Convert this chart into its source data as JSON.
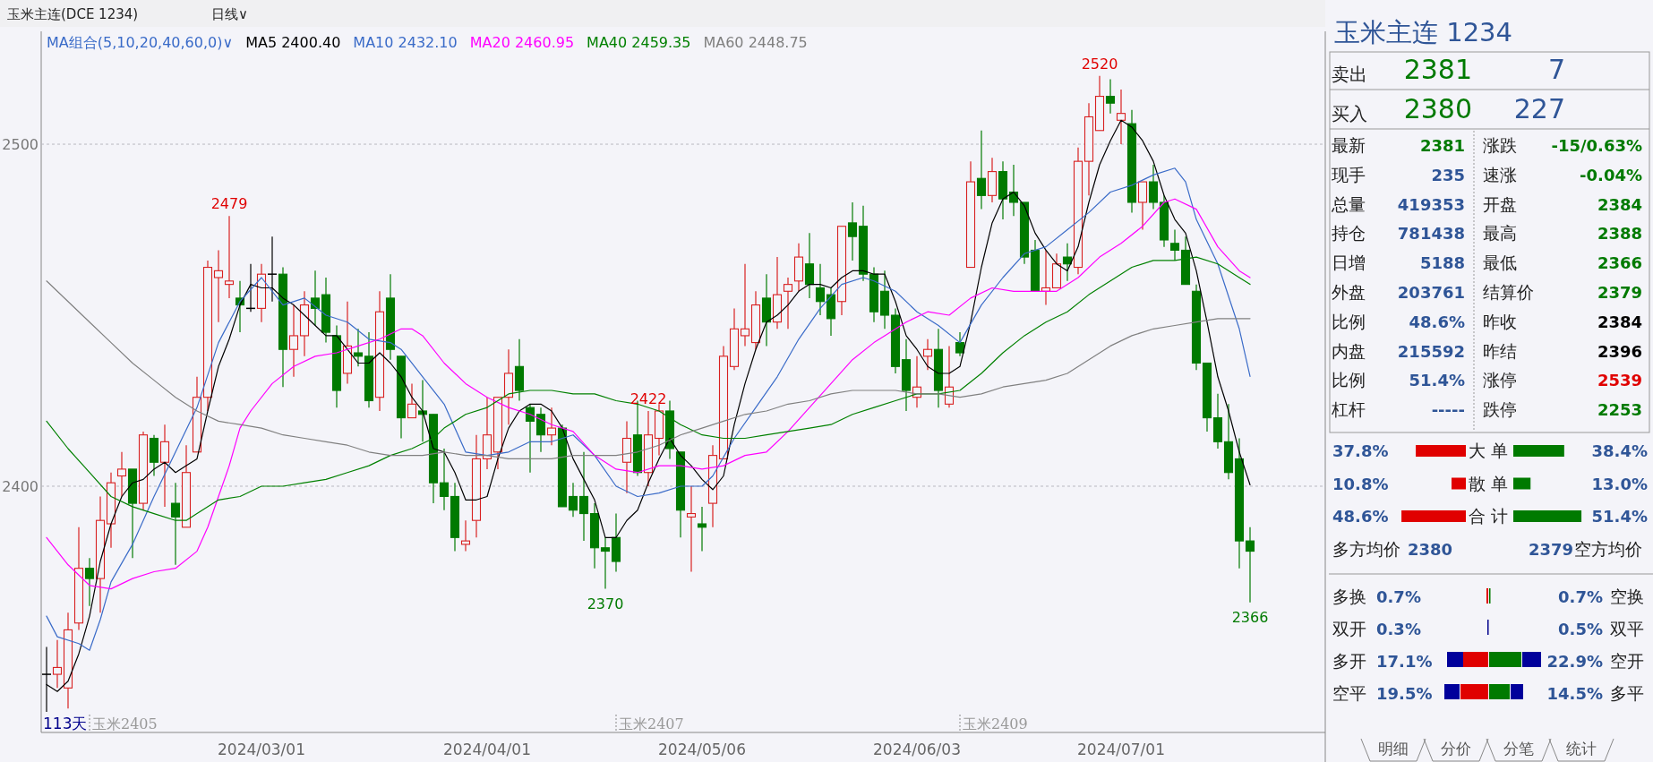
{
  "chart_data": [
    {
      "type": "candlestick",
      "title": "玉米主连(DCE 1234)",
      "subtitle": "日线∨",
      "legend_title": "MA组合(5,10,20,40,60,0)∨",
      "legend": "top left",
      "grid": "y",
      "ylim": [
        2328,
        2533
      ],
      "yticks": [
        2400,
        2500
      ],
      "categories": [
        null,
        null,
        null,
        null,
        null,
        null,
        null,
        null,
        null,
        null,
        null,
        null,
        null,
        null,
        null,
        null,
        null,
        null,
        null,
        null,
        "2024/03/01",
        null,
        null,
        null,
        null,
        null,
        null,
        null,
        null,
        null,
        null,
        null,
        null,
        null,
        null,
        null,
        null,
        null,
        null,
        null,
        null,
        "2024/04/01",
        null,
        null,
        null,
        null,
        null,
        null,
        null,
        null,
        null,
        null,
        null,
        null,
        null,
        null,
        null,
        null,
        null,
        null,
        null,
        "2024/05/06",
        null,
        null,
        null,
        null,
        null,
        null,
        null,
        null,
        null,
        null,
        null,
        null,
        null,
        null,
        null,
        null,
        null,
        null,
        null,
        "2024/06/03",
        null,
        null,
        null,
        null,
        null,
        null,
        null,
        null,
        null,
        null,
        null,
        null,
        null,
        null,
        null,
        null,
        null,
        null,
        "2024/07/01",
        null,
        null,
        null,
        null,
        null,
        null,
        null,
        null,
        null,
        null,
        null,
        null
      ],
      "ohlc": [
        [
          2345,
          2353,
          2334,
          2345
        ],
        [
          2345,
          2355,
          2341,
          2347
        ],
        [
          2341,
          2363,
          2335,
          2358
        ],
        [
          2360,
          2388,
          2358,
          2376
        ],
        [
          2376,
          2379,
          2365,
          2373
        ],
        [
          2373,
          2397,
          2363,
          2390
        ],
        [
          2389,
          2404,
          2382,
          2401
        ],
        [
          2403,
          2410,
          2397,
          2405
        ],
        [
          2405,
          2405,
          2379,
          2395
        ],
        [
          2395,
          2416,
          2393,
          2415
        ],
        [
          2414,
          2415,
          2403,
          2407
        ],
        [
          2407,
          2418,
          2394,
          2413
        ],
        [
          2395,
          2401,
          2377,
          2391
        ],
        [
          2388,
          2412,
          2388,
          2404
        ],
        [
          2410,
          2432,
          2410,
          2426
        ],
        [
          2426,
          2466,
          2422,
          2464
        ],
        [
          2461,
          2469,
          2448,
          2463
        ],
        [
          2459,
          2479,
          2455,
          2460
        ],
        [
          2455,
          2460,
          2445,
          2453
        ],
        [
          2452,
          2465,
          2451,
          2452
        ],
        [
          2452,
          2465,
          2448,
          2462
        ],
        [
          2462,
          2473,
          2454,
          2462
        ],
        [
          2462,
          2464,
          2429,
          2440
        ],
        [
          2440,
          2453,
          2432,
          2444
        ],
        [
          2444,
          2457,
          2438,
          2453
        ],
        [
          2455,
          2463,
          2447,
          2452
        ],
        [
          2456,
          2461,
          2442,
          2445
        ],
        [
          2444,
          2447,
          2423,
          2428
        ],
        [
          2433,
          2454,
          2430,
          2441
        ],
        [
          2439,
          2446,
          2435,
          2438
        ],
        [
          2438,
          2445,
          2423,
          2425
        ],
        [
          2426,
          2457,
          2422,
          2451
        ],
        [
          2455,
          2462,
          2437,
          2440
        ],
        [
          2438,
          2438,
          2414,
          2420
        ],
        [
          2420,
          2430,
          2420,
          2424
        ],
        [
          2422,
          2431,
          2413,
          2421
        ],
        [
          2421,
          2421,
          2395,
          2401
        ],
        [
          2401,
          2411,
          2393,
          2397
        ],
        [
          2397,
          2401,
          2381,
          2385
        ],
        [
          2383,
          2390,
          2381,
          2384
        ],
        [
          2390,
          2415,
          2385,
          2408
        ],
        [
          2408,
          2426,
          2405,
          2415
        ],
        [
          2410,
          2426,
          2405,
          2426
        ],
        [
          2426,
          2440,
          2418,
          2433
        ],
        [
          2435,
          2443,
          2425,
          2428
        ],
        [
          2423,
          2424,
          2404,
          2419
        ],
        [
          2421,
          2423,
          2410,
          2415
        ],
        [
          2415,
          2423,
          2412,
          2417
        ],
        [
          2417,
          2418,
          2394,
          2394
        ],
        [
          2397,
          2401,
          2391,
          2393
        ],
        [
          2397,
          2410,
          2384,
          2392
        ],
        [
          2392,
          2395,
          2376,
          2382
        ],
        [
          2382,
          2385,
          2370,
          2381
        ],
        [
          2385,
          2392,
          2375,
          2378
        ],
        [
          2407,
          2419,
          2398,
          2414
        ],
        [
          2415,
          2425,
          2403,
          2404
        ],
        [
          2404,
          2422,
          2400,
          2415
        ],
        [
          2414,
          2424,
          2409,
          2422
        ],
        [
          2422,
          2425,
          2408,
          2411
        ],
        [
          2410,
          2410,
          2385,
          2393
        ],
        [
          2391,
          2400,
          2375,
          2392
        ],
        [
          2389,
          2394,
          2381,
          2388
        ],
        [
          2395,
          2412,
          2388,
          2409
        ],
        [
          2408,
          2441,
          2408,
          2438
        ],
        [
          2435,
          2452,
          2434,
          2446
        ],
        [
          2444,
          2465,
          2441,
          2446
        ],
        [
          2442,
          2457,
          2440,
          2453
        ],
        [
          2455,
          2462,
          2441,
          2448
        ],
        [
          2448,
          2467,
          2446,
          2456
        ],
        [
          2457,
          2461,
          2446,
          2459
        ],
        [
          2460,
          2471,
          2457,
          2467
        ],
        [
          2465,
          2474,
          2455,
          2459
        ],
        [
          2458,
          2465,
          2450,
          2454
        ],
        [
          2456,
          2458,
          2444,
          2449
        ],
        [
          2454,
          2476,
          2450,
          2476
        ],
        [
          2477,
          2483,
          2466,
          2473
        ],
        [
          2476,
          2482,
          2460,
          2462
        ],
        [
          2462,
          2464,
          2448,
          2451
        ],
        [
          2457,
          2463,
          2446,
          2450
        ],
        [
          2450,
          2452,
          2433,
          2435
        ],
        [
          2437,
          2443,
          2422,
          2428
        ],
        [
          2426,
          2438,
          2423,
          2429
        ],
        [
          2438,
          2443,
          2434,
          2440
        ],
        [
          2440,
          2446,
          2423,
          2428
        ],
        [
          2424,
          2441,
          2423,
          2429
        ],
        [
          2442,
          2445,
          2438,
          2439
        ],
        [
          2464,
          2495,
          2464,
          2489
        ],
        [
          2490,
          2504,
          2481,
          2485
        ],
        [
          2485,
          2496,
          2483,
          2492
        ],
        [
          2492,
          2495,
          2478,
          2484
        ],
        [
          2486,
          2494,
          2479,
          2483
        ],
        [
          2483,
          2483,
          2465,
          2467
        ],
        [
          2469,
          2472,
          2457,
          2457
        ],
        [
          2457,
          2469,
          2453,
          2458
        ],
        [
          2458,
          2468,
          2458,
          2465
        ],
        [
          2467,
          2471,
          2460,
          2465
        ],
        [
          2464,
          2499,
          2462,
          2495
        ],
        [
          2495,
          2512,
          2485,
          2508
        ],
        [
          2504,
          2520,
          2504,
          2514
        ],
        [
          2514,
          2519,
          2509,
          2512
        ],
        [
          2507,
          2516,
          2500,
          2509
        ],
        [
          2506,
          2510,
          2480,
          2483
        ],
        [
          2483,
          2489,
          2475,
          2489
        ],
        [
          2489,
          2494,
          2481,
          2483
        ],
        [
          2483,
          2485,
          2470,
          2472
        ],
        [
          2471,
          2475,
          2466,
          2469
        ],
        [
          2469,
          2473,
          2459,
          2459
        ],
        [
          2457,
          2459,
          2434,
          2436
        ],
        [
          2436,
          2436,
          2416,
          2420
        ],
        [
          2420,
          2427,
          2411,
          2413
        ],
        [
          2413,
          2424,
          2402,
          2404
        ],
        [
          2408,
          2414,
          2376,
          2384
        ],
        [
          2384,
          2388,
          2366,
          2381
        ]
      ],
      "series": [
        {
          "name": "MA5 2400.40",
          "color": "#000000",
          "type": "line",
          "values": [
            2342,
            2340,
            2343,
            2351,
            2362,
            2378,
            2389,
            2397,
            2401,
            2402,
            2405,
            2407,
            2404,
            2406,
            2408,
            2422,
            2435,
            2443,
            2453,
            2459,
            2458,
            2458,
            2455,
            2453,
            2450,
            2447,
            2444,
            2444,
            2440,
            2436,
            2436,
            2439,
            2436,
            2432,
            2426,
            2422,
            2411,
            2410,
            2404,
            2396,
            2396,
            2397,
            2408,
            2417,
            2422,
            2424,
            2424,
            2422,
            2417,
            2408,
            2402,
            2396,
            2385,
            2385,
            2390,
            2393,
            2401,
            2408,
            2414,
            2409,
            2406,
            2402,
            2399,
            2403,
            2418,
            2430,
            2440,
            2448,
            2450,
            2453,
            2457,
            2459,
            2459,
            2458,
            2461,
            2463,
            2463,
            2462,
            2462,
            2454,
            2444,
            2440,
            2435,
            2433,
            2433,
            2435,
            2448,
            2464,
            2477,
            2484,
            2486,
            2482,
            2474,
            2469,
            2465,
            2463,
            2470,
            2483,
            2494,
            2501,
            2507,
            2505,
            2501,
            2495,
            2485,
            2478,
            2474,
            2463,
            2448,
            2432,
            2422,
            2410,
            2400.4
          ]
        },
        {
          "name": "MA10 2432.10",
          "color": "#3a6bc8",
          "type": "line",
          "values": [
            2362,
            2356,
            null,
            2354,
            2352,
            2361,
            2372,
            null,
            2383,
            null,
            2397,
            null,
            2410,
            null,
            2423,
            null,
            2442,
            null,
            2454,
            null,
            2461,
            null,
            2453,
            null,
            2455,
            null,
            2450,
            null,
            2448,
            null,
            2443,
            null,
            2442,
            2440,
            null,
            2432,
            null,
            2424,
            null,
            2410,
            null,
            2409,
            null,
            2410,
            null,
            2413,
            null,
            2413,
            null,
            2415,
            null,
            2409,
            null,
            2400,
            null,
            2397,
            null,
            2398,
            null,
            2400,
            null,
            2400,
            2403,
            null,
            2414,
            null,
            2423,
            null,
            2432,
            null,
            2443,
            null,
            2452,
            null,
            2459,
            null,
            2461,
            2460,
            null,
            2457,
            null,
            2451,
            null,
            2447,
            null,
            2442,
            null,
            2453,
            null,
            2461,
            null,
            2468,
            null,
            2470,
            null,
            2475,
            null,
            2480,
            null,
            2486,
            null,
            2488,
            null,
            2491,
            null,
            2493,
            2489,
            2478,
            null,
            2465,
            null,
            2446,
            2432.1
          ]
        },
        {
          "name": "MA20 2460.95",
          "color": "#ff00ff",
          "type": "line",
          "values": [
            2385,
            null,
            2377,
            null,
            2371,
            null,
            2370,
            null,
            2373,
            null,
            2375,
            null,
            2376,
            null,
            2381,
            2388,
            2397,
            2406,
            2417,
            2422,
            null,
            2430,
            null,
            2435,
            null,
            2438,
            null,
            2439,
            null,
            2441,
            null,
            2443,
            null,
            2446,
            2446,
            2444,
            null,
            2436,
            null,
            2430,
            null,
            2426,
            null,
            2423,
            null,
            2421,
            null,
            2418,
            null,
            2416,
            null,
            2409,
            null,
            2405,
            null,
            2404,
            null,
            2406,
            null,
            2406,
            null,
            2405,
            null,
            2406,
            null,
            2409,
            null,
            2410,
            null,
            2416,
            null,
            2423,
            null,
            2430,
            null,
            2437,
            null,
            2442,
            2444,
            null,
            2448,
            null,
            2451,
            null,
            2450,
            null,
            2455,
            null,
            2458,
            null,
            2457,
            null,
            2457,
            null,
            2457,
            null,
            2461,
            null,
            2467,
            null,
            2471,
            null,
            2476,
            null,
            2483,
            2484,
            null,
            2481,
            null,
            2470,
            null,
            2463,
            2461
          ]
        },
        {
          "name": "MA40 2459.35",
          "color": "#008000",
          "type": "line",
          "values": [
            2419,
            null,
            2411,
            null,
            2404,
            null,
            2397,
            null,
            2394,
            null,
            2392,
            null,
            2390,
            2390,
            2392,
            null,
            2396,
            null,
            2397,
            null,
            2400,
            null,
            2400,
            null,
            2401,
            null,
            2402,
            null,
            2404,
            null,
            2406,
            null,
            2409,
            null,
            2411,
            null,
            2414,
            2417,
            null,
            2421,
            null,
            2423,
            null,
            2427,
            null,
            2428,
            null,
            2428,
            null,
            2427,
            null,
            2427,
            null,
            2425,
            null,
            2424,
            null,
            2422,
            null,
            2418,
            null,
            2415,
            null,
            2414,
            null,
            2414,
            null,
            2415,
            null,
            2416,
            null,
            2417,
            null,
            2418,
            null,
            2421,
            null,
            2423,
            null,
            2425,
            null,
            2427,
            null,
            2427,
            null,
            2428,
            null,
            2433,
            null,
            2439,
            null,
            2444,
            null,
            2448,
            null,
            2451,
            null,
            2456,
            null,
            2460,
            null,
            2464,
            null,
            2466,
            null,
            2466,
            null,
            2467,
            null,
            2465,
            null,
            2461,
            2459
          ]
        },
        {
          "name": "MA60 2448.75",
          "color": "#808080",
          "type": "line",
          "values": [
            2460,
            null,
            2454,
            null,
            2448,
            null,
            2442,
            null,
            2436,
            null,
            2431,
            null,
            2426,
            null,
            2422,
            null,
            2419,
            null,
            2418,
            null,
            2417,
            null,
            2415,
            null,
            2414,
            null,
            2413,
            null,
            2412,
            null,
            2410,
            null,
            2409,
            null,
            2409,
            2409,
            null,
            2410,
            null,
            2409,
            null,
            2409,
            null,
            2408,
            null,
            2408,
            null,
            2408,
            null,
            2409,
            null,
            2409,
            null,
            2409,
            null,
            2410,
            null,
            2412,
            null,
            2415,
            null,
            2417,
            null,
            2419,
            null,
            2421,
            null,
            2422,
            null,
            2424,
            null,
            2425,
            null,
            2427,
            null,
            2428,
            null,
            2428,
            null,
            2428,
            null,
            2427,
            null,
            2427,
            null,
            2426,
            null,
            2427,
            null,
            2429,
            null,
            2430,
            null,
            2431,
            null,
            2433,
            null,
            2437,
            null,
            2441,
            null,
            2444,
            null,
            2446,
            null,
            2447,
            null,
            2448,
            null,
            2449,
            null,
            2449,
            2449
          ]
        }
      ],
      "annotations": [
        {
          "text": "2479",
          "y": 2479
        },
        {
          "text": "2370",
          "y": 2370
        },
        {
          "text": "2422",
          "y": 2422
        },
        {
          "text": "2520",
          "y": 2520
        },
        {
          "text": "2366",
          "y": 2366
        },
        "113天",
        "玉米2405",
        "玉米2407",
        "玉米2409"
      ]
    },
    {
      "type": "other",
      "title": "玉米主连 1234",
      "annotations": [
        "卖出",
        "2381",
        "7",
        "买入",
        "2380",
        "227",
        "最新",
        "2381",
        "涨跌",
        "-15/0.63%",
        "现手",
        "235",
        "速涨",
        "-0.04%",
        "总量",
        "419353",
        "开盘",
        "2384",
        "持仓",
        "781438",
        "最高",
        "2388",
        "日增",
        "5188",
        "最低",
        "2366",
        "外盘",
        "203761",
        "结算价",
        "2379",
        "比例",
        "48.6%",
        "昨收",
        "2384",
        "内盘",
        "215592",
        "昨结",
        "2396",
        "比例",
        "51.4%",
        "涨停",
        "2539",
        "杠杆",
        "-----",
        "跌停",
        "2253",
        "多方均价",
        "2380",
        "2379",
        "空方均价",
        "多换",
        "0.7%",
        "0.7%",
        "空换",
        "双开",
        "0.3%",
        "0.5%",
        "双平",
        "多开",
        "17.1%",
        "22.9%",
        "空开",
        "空平",
        "19.5%",
        "14.5%",
        "多平",
        "明细",
        "分价",
        "分笔",
        "统计"
      ]
    },
    {
      "type": "bar",
      "orientation": "horizontal",
      "categories": [
        "大 单",
        "散 单",
        "合 计"
      ],
      "series": [
        {
          "color": "#e00000",
          "values": [
            37.8,
            10.8,
            48.6
          ],
          "value_labels": [
            "37.8%",
            "10.8%",
            "48.6%"
          ]
        }
      ]
    },
    {
      "type": "bar",
      "orientation": "horizontal",
      "categories": [
        null,
        null,
        null
      ],
      "series": [
        {
          "color": "#007a00",
          "values": [
            38.4,
            13.0,
            51.4
          ],
          "value_labels": [
            "38.4%",
            "13.0%",
            "51.4%"
          ]
        }
      ]
    }
  ]
}
